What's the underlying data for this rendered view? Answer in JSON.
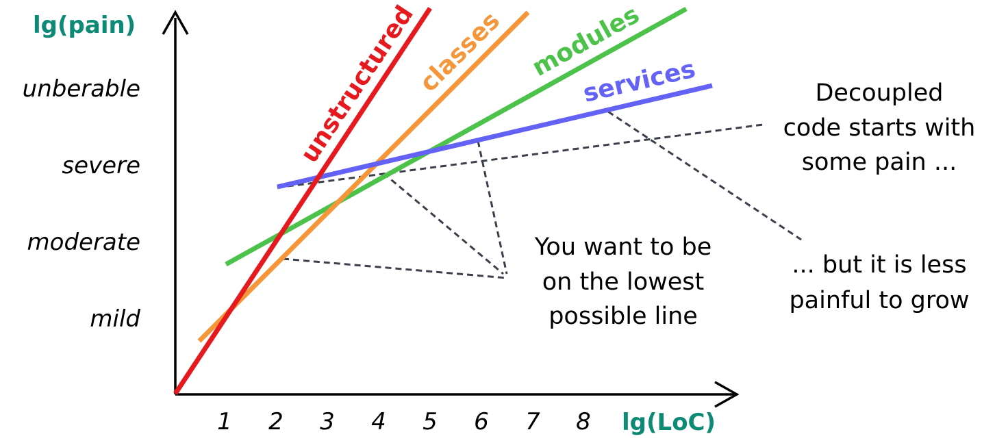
{
  "colors": {
    "axis_label": "#0d8a76",
    "unstructured": "#e5191e",
    "classes": "#f6963a",
    "modules": "#4cc24a",
    "services": "#6462f4",
    "guides": "#3a3f4b"
  },
  "axes": {
    "y_label": "lg(pain)",
    "x_label": "lg(LoC)",
    "y_levels": [
      "mild",
      "moderate",
      "severe",
      "unberable"
    ],
    "x_ticks": [
      "1",
      "2",
      "3",
      "4",
      "5",
      "6",
      "7",
      "8"
    ]
  },
  "series": [
    {
      "name": "unstructured",
      "color_key": "unstructured"
    },
    {
      "name": "classes",
      "color_key": "classes"
    },
    {
      "name": "modules",
      "color_key": "modules"
    },
    {
      "name": "services",
      "color_key": "services"
    }
  ],
  "annotations": {
    "center_lines": [
      "You want to be",
      "on the lowest",
      "possible line"
    ],
    "right_top_lines": [
      "Decoupled",
      "code starts with",
      "some pain ..."
    ],
    "right_bottom_lines": [
      "... but it is less",
      "painful to grow"
    ]
  }
}
